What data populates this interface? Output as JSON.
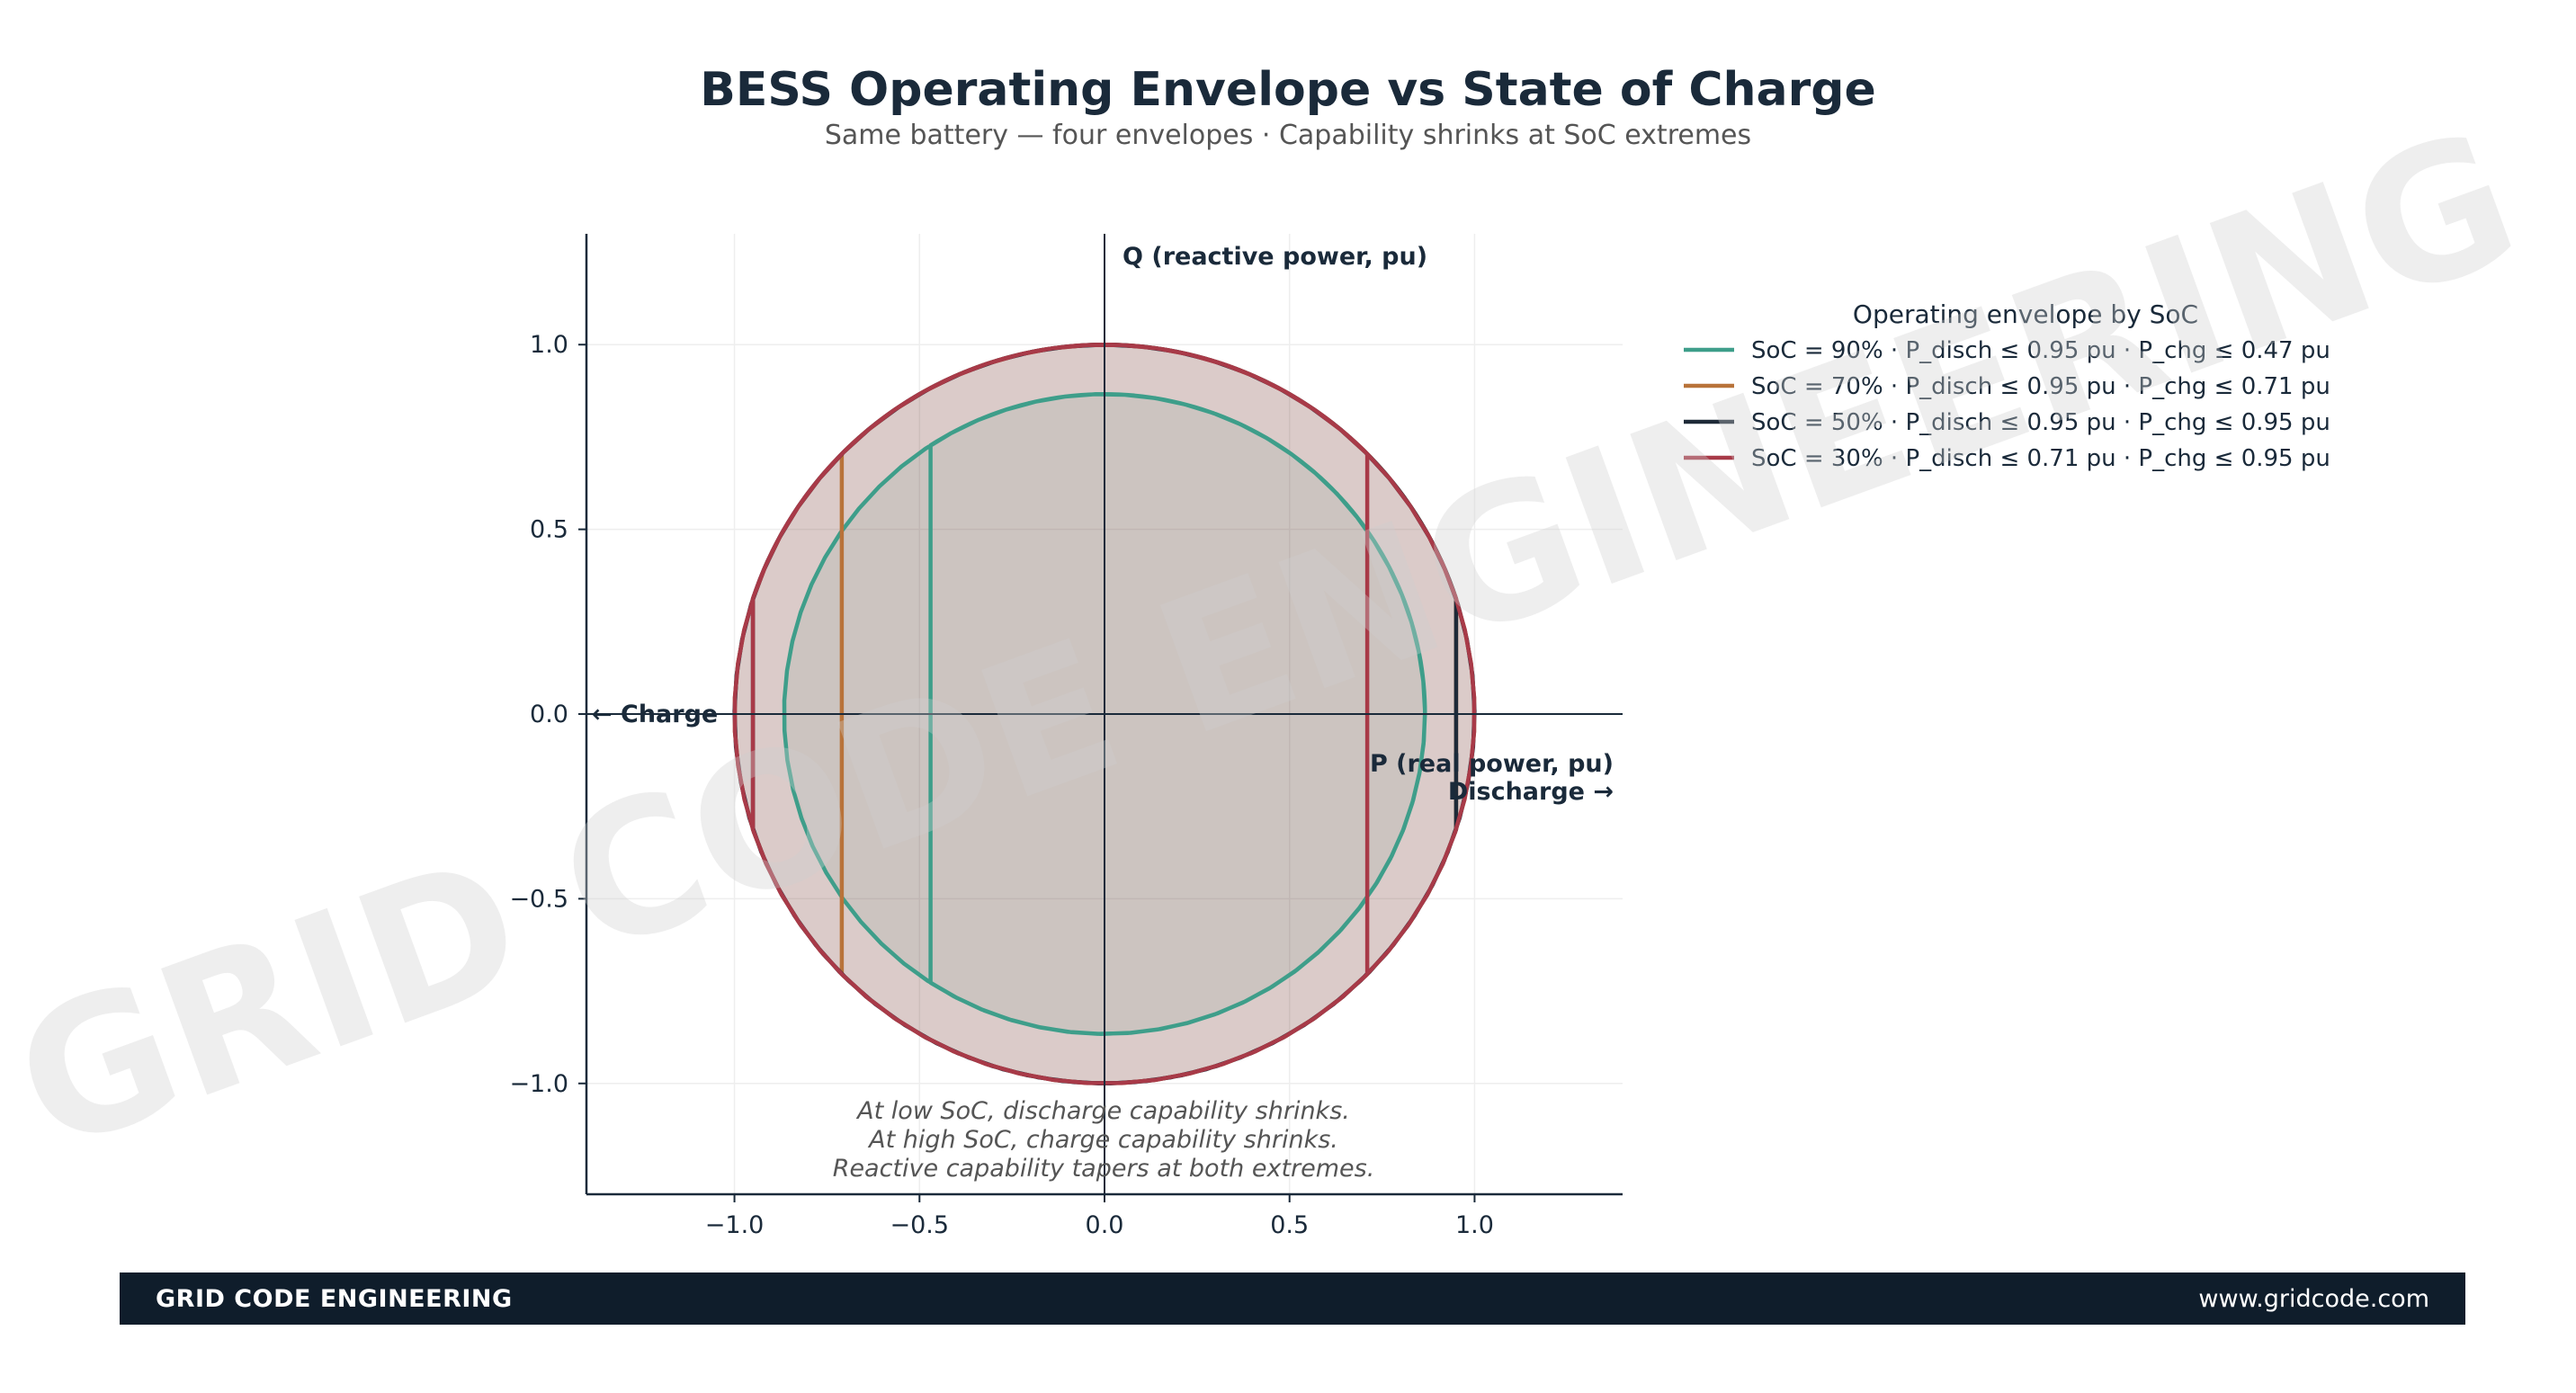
{
  "chart_data": {
    "type": "line",
    "title": "BESS Operating Envelope vs State of Charge",
    "subtitle": "Same battery — four envelopes  ·  Capability shrinks at SoC extremes",
    "xlim": [
      -1.4,
      1.4
    ],
    "ylim": [
      -1.3,
      1.3
    ],
    "x_ticks": [
      -1.0,
      -0.5,
      0.0,
      0.5,
      1.0
    ],
    "x_tick_labels": [
      "−1.0",
      "−0.5",
      "0.0",
      "0.5",
      "1.0"
    ],
    "y_ticks": [
      1.0,
      0.5,
      0.0,
      -0.5,
      -1.0
    ],
    "y_tick_labels": [
      "1.0",
      "0.5",
      "0.0",
      "−0.5",
      "−1.0"
    ],
    "grid": true,
    "xlabel": "P (real power, pu)",
    "xlabel_right": "Discharge →",
    "xlabel_left": "← Charge",
    "ylabel": "Q (reactive power, pu)",
    "legend_title": "Operating envelope by SoC",
    "legend_position": "right",
    "series": [
      {
        "name": "SoC = 90%  ·  P_disch ≤ 0.95 pu  ·  P_chg ≤ 0.47 pu",
        "soc": 90,
        "p_disch_max": 0.95,
        "p_chg_max": 0.47,
        "s_max": 0.866,
        "color": "#3e9e8a"
      },
      {
        "name": "SoC = 70%  ·  P_disch ≤ 0.95 pu  ·  P_chg ≤ 0.71 pu",
        "soc": 70,
        "p_disch_max": 0.95,
        "p_chg_max": 0.71,
        "s_max": 1.0,
        "color": "#b8733a"
      },
      {
        "name": "SoC = 50%  ·  P_disch ≤ 0.95 pu  ·  P_chg ≤ 0.95 pu",
        "soc": 50,
        "p_disch_max": 0.95,
        "p_chg_max": 0.95,
        "s_max": 1.0,
        "color": "#1e2a38"
      },
      {
        "name": "SoC = 30%  ·  P_disch ≤ 0.71 pu  ·  P_chg ≤ 0.95 pu",
        "soc": 30,
        "p_disch_max": 0.71,
        "p_chg_max": 0.95,
        "s_max": 1.0,
        "color": "#a83a48"
      }
    ],
    "annotation_lines": [
      "At low SoC, discharge capability shrinks.",
      "At high SoC, charge capability shrinks.",
      "Reactive capability tapers at both extremes."
    ]
  },
  "watermark": "GRID CODE ENGINEERING",
  "footer": {
    "brand": "GRID CODE ENGINEERING",
    "url": "www.gridcode.com"
  }
}
